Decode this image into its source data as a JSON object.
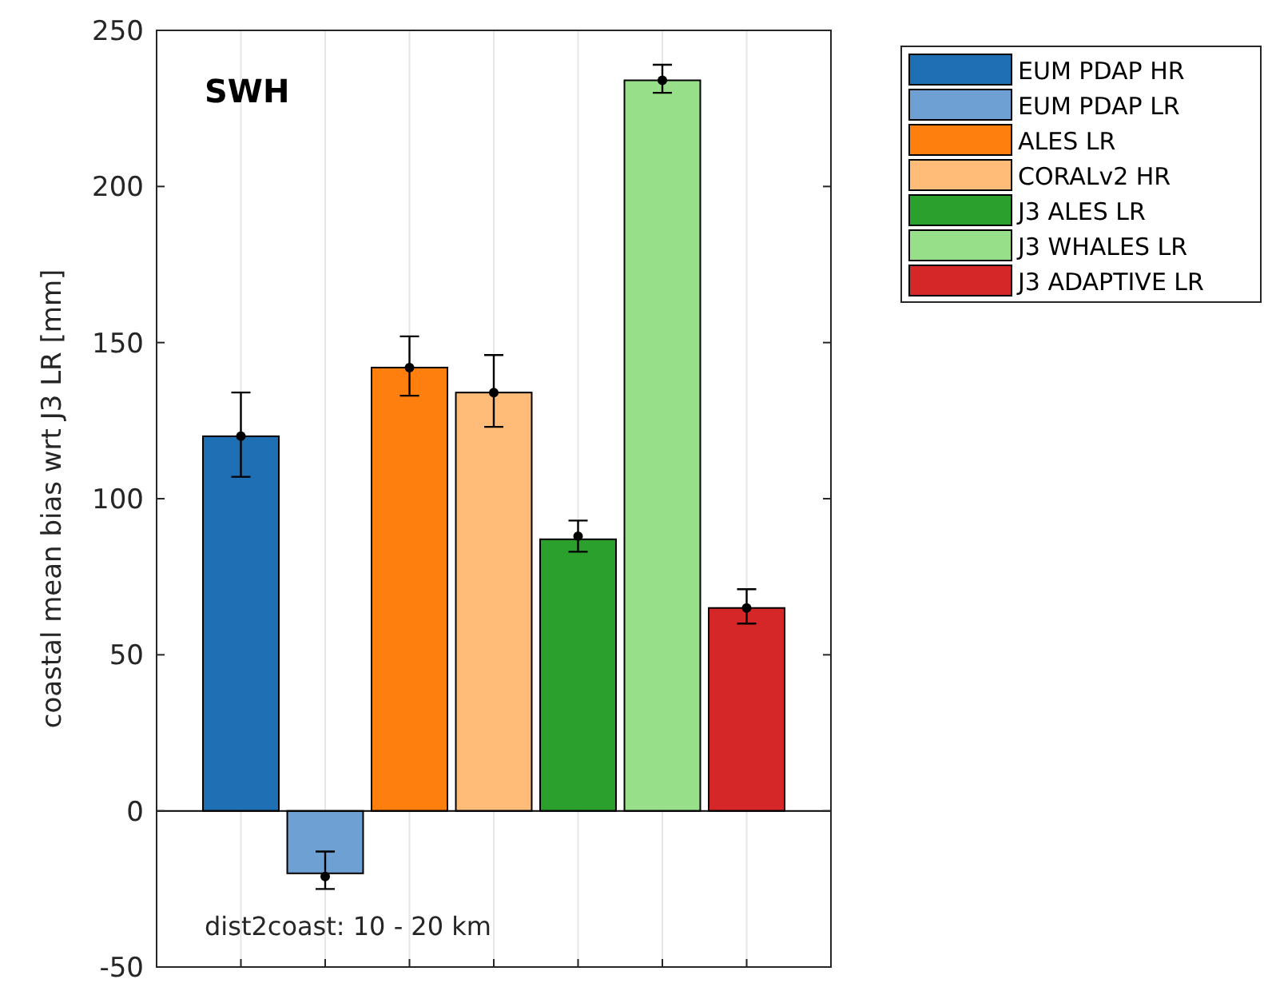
{
  "chart_data": {
    "type": "bar",
    "ylabel": "coastal mean bias wrt J3 LR [mm]",
    "annotations": [
      "SWH",
      "dist2coast: 10 - 20 km"
    ],
    "categories": [
      null,
      null,
      null,
      null,
      null,
      null,
      null
    ],
    "ylim": [
      -50,
      250
    ],
    "yticks": [
      -50,
      0,
      50,
      100,
      150,
      200,
      250
    ],
    "grid": "x",
    "legend": "top right",
    "series": [
      {
        "name": "EUM PDAP HR",
        "color": "#1f6fb5",
        "values": [
          120,
          null,
          null,
          null,
          null,
          null,
          null
        ],
        "errors": [
          [
            107,
            134
          ],
          null,
          null,
          null,
          null,
          null,
          null
        ]
      },
      {
        "name": "EUM PDAP LR",
        "color": "#6fa0d4",
        "values": [
          null,
          -20,
          null,
          null,
          null,
          null,
          null
        ],
        "errors": [
          null,
          [
            -25,
            -13
          ],
          null,
          null,
          null,
          null,
          null
        ]
      },
      {
        "name": "ALES LR",
        "color": "#ff7f0e",
        "values": [
          null,
          null,
          142,
          null,
          null,
          null,
          null
        ],
        "errors": [
          null,
          null,
          [
            133,
            152
          ],
          null,
          null,
          null,
          null
        ]
      },
      {
        "name": "CORALv2 HR",
        "color": "#ffbb78",
        "values": [
          null,
          null,
          null,
          134,
          null,
          null,
          null
        ],
        "errors": [
          null,
          null,
          null,
          [
            123,
            146
          ],
          null,
          null,
          null
        ]
      },
      {
        "name": "J3 ALES LR",
        "color": "#2ca02c",
        "values": [
          null,
          null,
          null,
          null,
          87,
          null,
          null
        ],
        "errors": [
          null,
          null,
          null,
          null,
          [
            83,
            93
          ],
          null,
          null
        ]
      },
      {
        "name": "J3 WHALES LR",
        "color": "#98df8a",
        "values": [
          null,
          null,
          null,
          null,
          null,
          234,
          null
        ],
        "errors": [
          null,
          null,
          null,
          null,
          null,
          [
            230,
            239
          ],
          null
        ]
      },
      {
        "name": "J3 ADAPTIVE LR",
        "color": "#d62728",
        "values": [
          null,
          null,
          null,
          null,
          null,
          null,
          65
        ],
        "errors": [
          null,
          null,
          null,
          null,
          null,
          null,
          [
            60,
            71
          ]
        ]
      },
      {
        "type": "scatter",
        "color": "#000000",
        "marker": "circle",
        "values": [
          120,
          -21,
          142,
          134,
          88,
          234,
          65
        ]
      }
    ]
  }
}
